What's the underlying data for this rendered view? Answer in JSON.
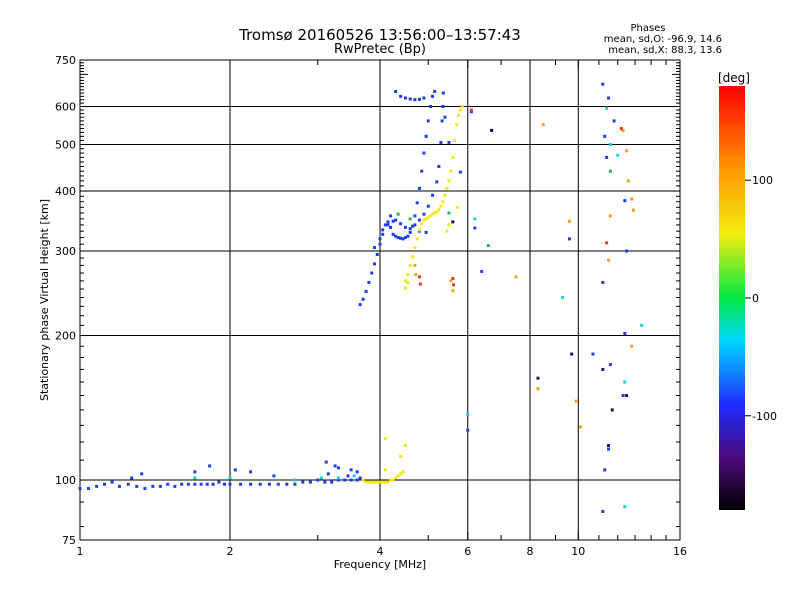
{
  "chart_data": {
    "type": "scatter",
    "title": "Tromsø 20160526 13:56:00–13:57:43",
    "subtitle": "RwPretec (Bp)",
    "xlabel": "Frequency [MHz]",
    "ylabel": "Stationary phase Virtual Height [km]",
    "x_scale": "log",
    "y_scale": "log",
    "xlim": [
      1,
      16
    ],
    "ylim": [
      75,
      750
    ],
    "x_ticks": [
      1,
      2,
      4,
      6,
      8,
      10,
      16
    ],
    "x_tick_labels": [
      "1",
      "2",
      "4",
      "6",
      "8",
      "10",
      "16"
    ],
    "y_ticks": [
      75,
      100,
      200,
      300,
      400,
      500,
      600,
      750
    ],
    "y_tick_labels": [
      "75",
      "100",
      "200",
      "300",
      "400",
      "500",
      "600",
      "750"
    ],
    "x_grid_lines": [
      2,
      4,
      6,
      8,
      10
    ],
    "y_grid_lines": [
      100,
      200,
      300,
      400,
      500,
      600
    ],
    "grid": true,
    "stats": {
      "title": "Phases",
      "line_o": "mean, sd,O: -96.9, 14.6",
      "line_x": "mean, sd,X:  88.3, 13.6"
    },
    "colorbar": {
      "label": "[deg]",
      "min": -180,
      "max": 180,
      "ticks": [
        100,
        0,
        -100
      ],
      "tick_labels": [
        "100",
        "0",
        "-100"
      ]
    },
    "series": [
      {
        "color": "#1f3cf0",
        "points": [
          [
            1.0,
            96
          ],
          [
            1.04,
            96
          ],
          [
            1.08,
            97
          ],
          [
            1.12,
            98
          ],
          [
            1.16,
            99
          ],
          [
            1.2,
            97
          ],
          [
            1.25,
            98
          ],
          [
            1.3,
            97
          ],
          [
            1.35,
            96
          ],
          [
            1.4,
            97
          ],
          [
            1.45,
            97
          ],
          [
            1.5,
            98
          ],
          [
            1.55,
            97
          ],
          [
            1.6,
            98
          ],
          [
            1.65,
            98
          ],
          [
            1.7,
            98
          ],
          [
            1.75,
            98
          ],
          [
            1.8,
            98
          ],
          [
            1.85,
            98
          ],
          [
            1.9,
            99
          ],
          [
            1.95,
            98
          ],
          [
            2.0,
            98
          ],
          [
            2.1,
            98
          ],
          [
            2.2,
            98
          ],
          [
            2.3,
            98
          ],
          [
            2.4,
            98
          ],
          [
            2.5,
            98
          ],
          [
            2.6,
            98
          ],
          [
            2.7,
            98
          ],
          [
            2.8,
            99
          ],
          [
            2.9,
            99
          ],
          [
            3.0,
            100
          ],
          [
            3.1,
            99
          ],
          [
            3.2,
            99
          ],
          [
            3.3,
            100
          ],
          [
            3.4,
            100
          ],
          [
            3.5,
            100
          ],
          [
            3.6,
            100
          ],
          [
            3.65,
            101
          ],
          [
            1.27,
            101
          ],
          [
            1.33,
            103
          ],
          [
            1.7,
            104
          ],
          [
            1.82,
            107
          ],
          [
            2.05,
            105
          ],
          [
            2.2,
            104
          ],
          [
            2.45,
            102
          ],
          [
            3.15,
            103
          ],
          [
            3.3,
            106
          ],
          [
            3.45,
            102
          ],
          [
            3.12,
            109
          ],
          [
            3.25,
            107
          ],
          [
            3.5,
            105
          ],
          [
            3.6,
            104
          ],
          [
            3.65,
            232
          ],
          [
            3.7,
            238
          ],
          [
            3.75,
            247
          ],
          [
            3.8,
            258
          ],
          [
            3.85,
            270
          ],
          [
            3.9,
            282
          ],
          [
            3.95,
            295
          ],
          [
            4.0,
            310
          ],
          [
            4.05,
            325
          ],
          [
            4.1,
            340
          ],
          [
            4.15,
            345
          ],
          [
            4.2,
            336
          ],
          [
            4.25,
            325
          ],
          [
            4.3,
            322
          ],
          [
            4.35,
            320
          ],
          [
            4.4,
            319
          ],
          [
            4.45,
            318
          ],
          [
            4.5,
            320
          ],
          [
            4.55,
            322
          ],
          [
            4.6,
            328
          ],
          [
            4.65,
            338
          ],
          [
            4.7,
            355
          ],
          [
            4.75,
            378
          ],
          [
            4.8,
            405
          ],
          [
            4.85,
            440
          ],
          [
            4.9,
            480
          ],
          [
            4.95,
            520
          ],
          [
            5.0,
            560
          ],
          [
            5.05,
            600
          ],
          [
            5.1,
            630
          ],
          [
            5.15,
            645
          ],
          [
            4.2,
            355
          ],
          [
            4.3,
            348
          ],
          [
            4.4,
            342
          ],
          [
            4.5,
            336
          ],
          [
            4.6,
            334
          ],
          [
            4.7,
            340
          ],
          [
            4.8,
            348
          ],
          [
            4.9,
            358
          ],
          [
            5.0,
            372
          ],
          [
            5.1,
            392
          ],
          [
            5.2,
            418
          ],
          [
            5.25,
            450
          ],
          [
            5.3,
            505
          ],
          [
            5.33,
            560
          ],
          [
            5.35,
            600
          ],
          [
            5.36,
            640
          ],
          [
            4.3,
            645
          ],
          [
            4.4,
            630
          ],
          [
            4.5,
            625
          ],
          [
            4.6,
            622
          ],
          [
            4.7,
            620
          ],
          [
            4.8,
            621
          ],
          [
            4.9,
            625
          ],
          [
            4.05,
            332
          ],
          [
            4.15,
            340
          ],
          [
            4.25,
            346
          ],
          [
            4.0,
            318
          ],
          [
            3.9,
            305
          ],
          [
            4.8,
            330
          ],
          [
            4.95,
            328
          ],
          [
            5.4,
            570
          ],
          [
            5.5,
            505
          ],
          [
            5.8,
            438
          ],
          [
            6.1,
            585
          ],
          [
            6.2,
            335
          ],
          [
            6.7,
            535
          ],
          [
            6.4,
            272
          ],
          [
            6.0,
            127
          ],
          [
            9.6,
            318
          ],
          [
            11.2,
            668
          ],
          [
            11.5,
            625
          ],
          [
            11.8,
            560
          ],
          [
            11.3,
            520
          ],
          [
            11.4,
            470
          ],
          [
            11.2,
            258
          ],
          [
            11.6,
            174
          ],
          [
            12.3,
            150
          ],
          [
            11.5,
            116
          ],
          [
            10.7,
            183
          ],
          [
            11.3,
            105
          ],
          [
            11.2,
            86
          ],
          [
            12.4,
            382
          ],
          [
            12.4,
            202
          ],
          [
            12.5,
            300
          ]
        ]
      },
      {
        "color": "#f2ea18",
        "points": [
          [
            3.7,
            100
          ],
          [
            3.75,
            99
          ],
          [
            3.8,
            99
          ],
          [
            3.85,
            99
          ],
          [
            3.9,
            99
          ],
          [
            3.95,
            99
          ],
          [
            4.0,
            99
          ],
          [
            4.05,
            99
          ],
          [
            4.1,
            99
          ],
          [
            4.15,
            99
          ],
          [
            4.2,
            100
          ],
          [
            4.25,
            100
          ],
          [
            4.3,
            101
          ],
          [
            4.35,
            102
          ],
          [
            4.4,
            103
          ],
          [
            4.45,
            104
          ],
          [
            4.5,
            260
          ],
          [
            4.55,
            268
          ],
          [
            4.6,
            280
          ],
          [
            4.65,
            292
          ],
          [
            4.7,
            305
          ],
          [
            4.75,
            318
          ],
          [
            4.8,
            332
          ],
          [
            4.85,
            342
          ],
          [
            4.9,
            348
          ],
          [
            4.95,
            350
          ],
          [
            5.0,
            352
          ],
          [
            5.05,
            355
          ],
          [
            5.1,
            358
          ],
          [
            5.15,
            360
          ],
          [
            5.2,
            362
          ],
          [
            5.25,
            366
          ],
          [
            5.3,
            372
          ],
          [
            5.35,
            380
          ],
          [
            5.4,
            392
          ],
          [
            5.45,
            405
          ],
          [
            5.5,
            420
          ],
          [
            5.55,
            440
          ],
          [
            5.6,
            470
          ],
          [
            5.65,
            510
          ],
          [
            5.7,
            550
          ],
          [
            5.75,
            575
          ],
          [
            5.8,
            590
          ],
          [
            5.85,
            600
          ],
          [
            4.5,
            251
          ],
          [
            4.55,
            258
          ],
          [
            5.72,
            370
          ],
          [
            5.6,
            345
          ],
          [
            5.5,
            340
          ],
          [
            5.45,
            330
          ],
          [
            4.1,
            122
          ],
          [
            4.1,
            105
          ],
          [
            4.4,
            112
          ],
          [
            4.5,
            118
          ]
        ]
      },
      {
        "color": "#ff9a1c",
        "points": [
          [
            8.5,
            550
          ],
          [
            9.6,
            346
          ],
          [
            9.9,
            146
          ],
          [
            10.1,
            129
          ],
          [
            11.5,
            287
          ],
          [
            11.6,
            355
          ],
          [
            12.3,
            535
          ],
          [
            12.5,
            485
          ],
          [
            12.6,
            420
          ],
          [
            12.8,
            385
          ],
          [
            12.9,
            365
          ],
          [
            12.8,
            190
          ],
          [
            7.5,
            265
          ],
          [
            5.6,
            248
          ],
          [
            5.55,
            260
          ],
          [
            4.7,
            280
          ],
          [
            4.72,
            268
          ],
          [
            8.3,
            155
          ]
        ]
      },
      {
        "color": "#e04020",
        "points": [
          [
            5.6,
            263
          ],
          [
            5.62,
            255
          ],
          [
            6.1,
            590
          ],
          [
            12.2,
            540
          ],
          [
            11.4,
            312
          ],
          [
            4.8,
            265
          ],
          [
            4.82,
            256
          ]
        ]
      },
      {
        "color": "#18d0d8",
        "points": [
          [
            1.7,
            101
          ],
          [
            2.0,
            101
          ],
          [
            2.7,
            100
          ],
          [
            3.05,
            101
          ],
          [
            3.3,
            101
          ],
          [
            3.55,
            102
          ],
          [
            6.0,
            137
          ],
          [
            6.2,
            350
          ],
          [
            9.3,
            240
          ],
          [
            11.4,
            595
          ],
          [
            11.6,
            500
          ],
          [
            12.0,
            475
          ],
          [
            13.4,
            210
          ],
          [
            12.4,
            160
          ],
          [
            12.4,
            88
          ]
        ]
      },
      {
        "color": "#1fb84a",
        "points": [
          [
            4.35,
            358
          ],
          [
            4.6,
            350
          ],
          [
            5.5,
            360
          ],
          [
            6.6,
            308
          ],
          [
            11.6,
            440
          ]
        ]
      },
      {
        "color": "#1a1a60",
        "points": [
          [
            8.3,
            163
          ],
          [
            9.7,
            183
          ],
          [
            11.2,
            170
          ],
          [
            11.7,
            140
          ],
          [
            12.5,
            150
          ],
          [
            11.5,
            118
          ],
          [
            5.6,
            345
          ],
          [
            6.7,
            535
          ]
        ]
      }
    ]
  }
}
